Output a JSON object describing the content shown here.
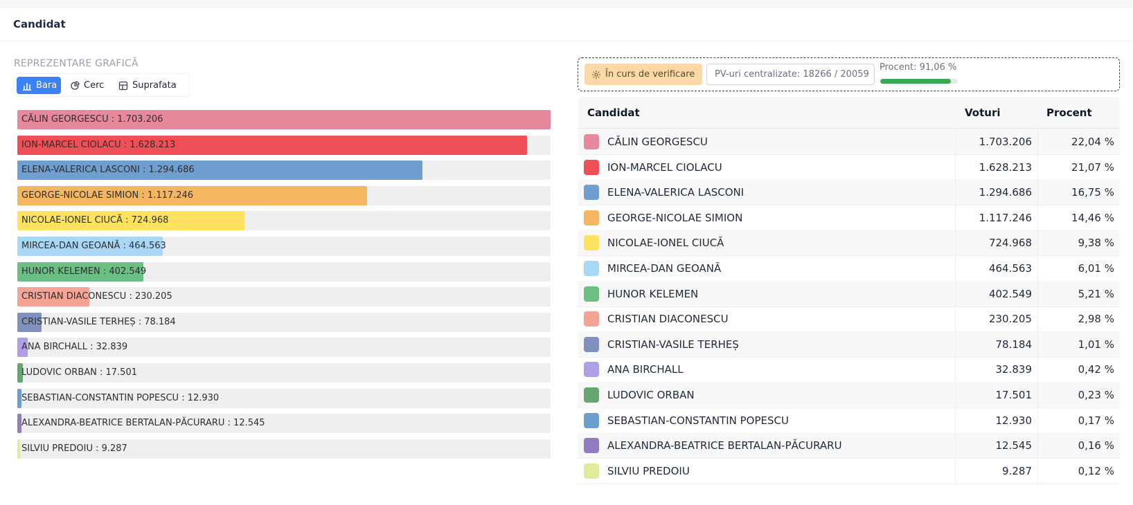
{
  "card": {
    "title": "Candidat"
  },
  "chart_section": {
    "label": "REPREZENTARE GRAFICĂ",
    "toggles": [
      {
        "label": "Bara",
        "icon": "bar-chart-icon",
        "active": true
      },
      {
        "label": "Cerc",
        "icon": "pie-chart-icon",
        "active": false
      },
      {
        "label": "Suprafata",
        "icon": "area-grid-icon",
        "active": false
      }
    ]
  },
  "status": {
    "verify_label": "În curs de verificare",
    "verify_icon": "gear-icon",
    "pv_label": "PV-uri centralizate: 18266 / 20059",
    "progress_label": "Procent: 91,06 %",
    "progress_value": 0.9106,
    "progress_color": "#3aa757",
    "verify_color": "#fbd8a6"
  },
  "table": {
    "headers": {
      "name": "Candidat",
      "votes": "Voturi",
      "percent": "Procent"
    }
  },
  "chart_data": {
    "type": "bar",
    "orientation": "horizontal",
    "xlim": [
      0,
      1703206
    ],
    "categories": [
      "CĂLIN GEORGESCU",
      "ION-MARCEL CIOLACU",
      "ELENA-VALERICA LASCONI",
      "GEORGE-NICOLAE SIMION",
      "NICOLAE-IONEL CIUCĂ",
      "MIRCEA-DAN GEOANĂ",
      "HUNOR KELEMEN",
      "CRISTIAN DIACONESCU",
      "CRISTIAN-VASILE TERHEȘ",
      "ANA BIRCHALL",
      "LUDOVIC ORBAN",
      "SEBASTIAN-CONSTANTIN POPESCU",
      "ALEXANDRA-BEATRICE BERTALAN-PĂCURARU",
      "SILVIU PREDOIU"
    ],
    "values": [
      1703206,
      1628213,
      1294686,
      1117246,
      724968,
      464563,
      402549,
      230205,
      78184,
      32839,
      17501,
      12930,
      12545,
      9287
    ],
    "bar_labels": [
      "CĂLIN GEORGESCU : 1.703.206",
      "ION-MARCEL CIOLACU : 1.628.213",
      "ELENA-VALERICA LASCONI : 1.294.686",
      "GEORGE-NICOLAE SIMION : 1.117.246",
      "NICOLAE-IONEL CIUCĂ : 724.968",
      "MIRCEA-DAN GEOANĂ : 464.563",
      "HUNOR KELEMEN : 402.549",
      "CRISTIAN DIACONESCU : 230.205",
      "CRISTIAN-VASILE TERHEȘ : 78.184",
      "ANA BIRCHALL : 32.839",
      "LUDOVIC ORBAN : 17.501",
      "SEBASTIAN-CONSTANTIN POPESCU : 12.930",
      "ALEXANDRA-BEATRICE BERTALAN-PĂCURARU : 12.545",
      "SILVIU PREDOIU : 9.287"
    ],
    "votes_text": [
      "1.703.206",
      "1.628.213",
      "1.294.686",
      "1.117.246",
      "724.968",
      "464.563",
      "402.549",
      "230.205",
      "78.184",
      "32.839",
      "17.501",
      "12.930",
      "12.545",
      "9.287"
    ],
    "percent_text": [
      "22,04 %",
      "21,07 %",
      "16,75 %",
      "14,46 %",
      "9,38 %",
      "6,01 %",
      "5,21 %",
      "2,98 %",
      "1,01 %",
      "0,42 %",
      "0,23 %",
      "0,17 %",
      "0,16 %",
      "0,12 %"
    ],
    "colors": [
      "#e8889c",
      "#ef5058",
      "#6f9fd0",
      "#f4b660",
      "#ffe360",
      "#a9d8f7",
      "#6cbf84",
      "#f4a396",
      "#8191bd",
      "#b09fe6",
      "#67a672",
      "#6d9fce",
      "#8f7cc1",
      "#e2ea9c"
    ]
  }
}
